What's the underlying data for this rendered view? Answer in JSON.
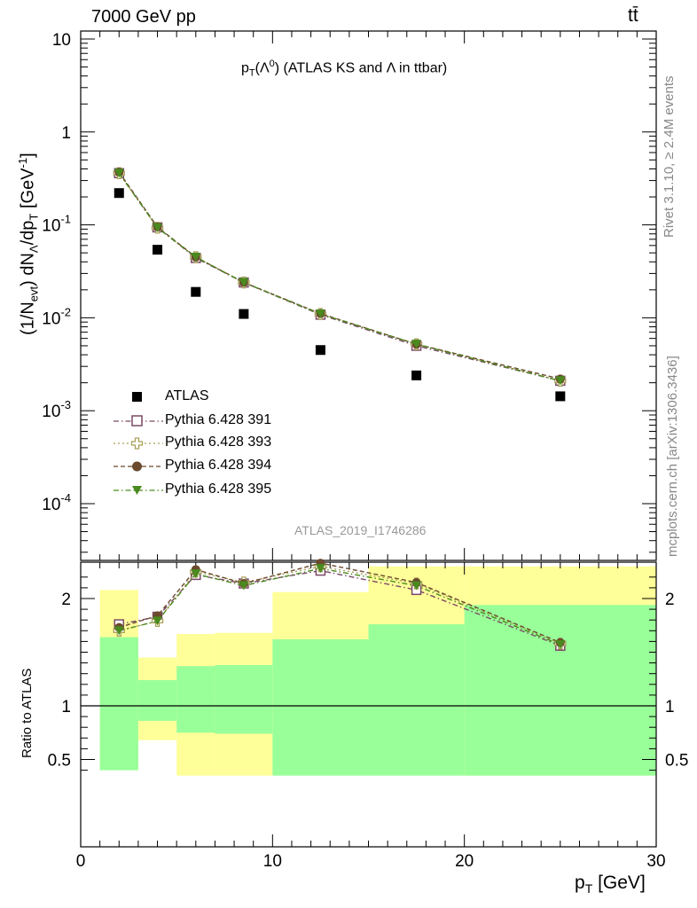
{
  "header": {
    "left_label": "7000 GeV pp",
    "right_label": "tt̄"
  },
  "side_labels": {
    "rivet": "Rivet 3.1.10, ≥ 2.4M events",
    "source": "mcplots.cern.ch [arXiv:1306.3436]"
  },
  "watermark": "ATLAS_2019_I1746286",
  "colors": {
    "data": "#000000",
    "p391": "#7a4a66",
    "p393": "#a8a05a",
    "p394": "#6b4a2e",
    "p395": "#4a8a1e",
    "band_yellow": "#ffff99",
    "band_green": "#99ff99"
  },
  "chart_data": {
    "type": "scatter",
    "title": "p_T(Λ⁰) (ATLAS KS and Λ in ttbar)",
    "title_parts": {
      "p": "p",
      "sub": "T",
      "rest": "(Λ",
      "sup": "0",
      "tail": ") (ATLAS KS and Λ in ttbar)"
    },
    "ylabel": "(1/N_evt) dN_Λ/dp_T [GeV⁻¹]",
    "ylabel_parts": {
      "a": "(1/N",
      "a_sub": "evt",
      "b": ") dN",
      "b_sub": "Λ",
      "c": "/dp",
      "c_sub": "T",
      "d": " [GeV",
      "d_sup": "-1",
      "e": "]"
    },
    "xlabel": "p_T [GeV]",
    "xlabel_parts": {
      "p": "p",
      "sub": "T",
      "rest": " [GeV]"
    },
    "ratio_ylabel": "Ratio to ATLAS",
    "xlim": [
      0,
      30
    ],
    "ylim": [
      3e-05,
      12
    ],
    "ratio_ylim": [
      0.35,
      2.3
    ],
    "log_y": true,
    "x_ticks": [
      "0",
      "10",
      "20",
      "30"
    ],
    "y_ticks": [
      "10",
      "1",
      "10^-1",
      "10^-2",
      "10^-3",
      "10^-4"
    ],
    "ratio_ticks": [
      "0.5",
      "1",
      "2"
    ],
    "legend_position": "lower-left",
    "x": [
      2,
      4,
      6,
      8.5,
      12.5,
      17.5,
      25
    ],
    "bins": [
      [
        1,
        3
      ],
      [
        3,
        5
      ],
      [
        5,
        7
      ],
      [
        7,
        10
      ],
      [
        10,
        15
      ],
      [
        15,
        20
      ],
      [
        20,
        30
      ]
    ],
    "data": {
      "name": "ATLAS",
      "values": [
        0.22,
        0.054,
        0.019,
        0.011,
        0.0045,
        0.0024,
        0.00143
      ]
    },
    "series": [
      {
        "name": "Pythia 6.428 391",
        "values": [
          0.36,
          0.094,
          0.044,
          0.024,
          0.0108,
          0.005,
          0.0021
        ],
        "ratio": [
          1.76,
          1.83,
          2.22,
          2.14,
          2.26,
          2.08,
          1.56
        ]
      },
      {
        "name": "Pythia 6.428 393",
        "values": [
          0.36,
          0.093,
          0.045,
          0.024,
          0.011,
          0.0052,
          0.0021
        ],
        "ratio": [
          1.7,
          1.79,
          2.25,
          2.15,
          2.3,
          2.14,
          1.58
        ]
      },
      {
        "name": "Pythia 6.428 394",
        "values": [
          0.37,
          0.095,
          0.045,
          0.024,
          0.0111,
          0.0052,
          0.0022
        ],
        "ratio": [
          1.73,
          1.84,
          2.27,
          2.14,
          2.33,
          2.15,
          1.59
        ]
      },
      {
        "name": "Pythia 6.428 395",
        "values": [
          0.36,
          0.093,
          0.045,
          0.024,
          0.011,
          0.0052,
          0.0021
        ],
        "ratio": [
          1.7,
          1.79,
          2.23,
          2.12,
          2.28,
          2.12,
          1.57
        ]
      }
    ],
    "band_yellow": [
      [
        0.4,
        2.08
      ],
      [
        0.68,
        1.45
      ],
      [
        0.35,
        1.67
      ],
      [
        0.35,
        1.68
      ],
      [
        0.44,
        2.06
      ],
      [
        0.44,
        2.3
      ],
      [
        0.35,
        2.3
      ]
    ],
    "band_green": [
      [
        0.4,
        1.64
      ],
      [
        0.86,
        1.24
      ],
      [
        0.75,
        1.37
      ],
      [
        0.74,
        1.38
      ],
      [
        0.35,
        1.62
      ],
      [
        0.35,
        1.76
      ],
      [
        0.35,
        1.94
      ]
    ]
  }
}
